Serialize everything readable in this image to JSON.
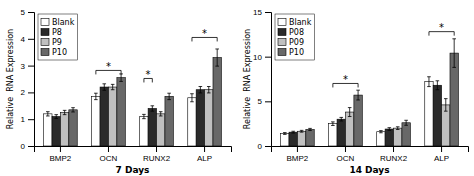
{
  "chart_data": [
    {
      "type": "bar",
      "xlabel": "7 Days",
      "ylabel": "Relative  RNA Expression",
      "categories": [
        "BMP2",
        "OCN",
        "RUNX2",
        "ALP"
      ],
      "series": [
        {
          "name": "Blank",
          "color": "#ffffff",
          "values": [
            1.2,
            1.85,
            1.1,
            1.8
          ],
          "errors": [
            0.08,
            0.12,
            0.08,
            0.15
          ]
        },
        {
          "name": "P8",
          "color": "#2a2a2a",
          "values": [
            1.1,
            2.2,
            1.4,
            2.1
          ],
          "errors": [
            0.07,
            0.12,
            0.1,
            0.12
          ]
        },
        {
          "name": "P9",
          "color": "#c0c0c0",
          "values": [
            1.25,
            2.2,
            1.2,
            2.1
          ],
          "errors": [
            0.08,
            0.1,
            0.08,
            0.12
          ]
        },
        {
          "name": "P10",
          "color": "#686868",
          "values": [
            1.35,
            2.55,
            1.85,
            3.3
          ],
          "errors": [
            0.08,
            0.14,
            0.12,
            0.32
          ]
        }
      ],
      "ylim": [
        0,
        5
      ],
      "yticks": [
        0,
        1,
        2,
        3,
        4,
        5
      ],
      "grid": false,
      "legend": "upper left",
      "annotations": [
        {
          "label": "*",
          "y": 2.82,
          "from": {
            "category": "OCN",
            "series": "Blank"
          },
          "to": {
            "category": "OCN",
            "series": "P10"
          }
        },
        {
          "label": "*",
          "y": 2.52,
          "from": {
            "category": "RUNX2",
            "series": "Blank"
          },
          "to": {
            "category": "RUNX2",
            "series": "P8"
          }
        },
        {
          "label": "*",
          "y": 4.05,
          "from": {
            "category": "ALP",
            "series": "Blank"
          },
          "to": {
            "category": "ALP",
            "series": "P10"
          }
        }
      ]
    },
    {
      "type": "bar",
      "xlabel": "14 Days",
      "ylabel": "Relative  RNA Expression",
      "categories": [
        "BMP2",
        "OCN",
        "RUNX2",
        "ALP"
      ],
      "series": [
        {
          "name": "Blank",
          "color": "#ffffff",
          "values": [
            1.4,
            2.5,
            1.6,
            7.2
          ],
          "errors": [
            0.1,
            0.2,
            0.12,
            0.55
          ]
        },
        {
          "name": "P08",
          "color": "#2a2a2a",
          "values": [
            1.55,
            3.0,
            1.9,
            6.8
          ],
          "errors": [
            0.1,
            0.2,
            0.15,
            0.5
          ]
        },
        {
          "name": "P09",
          "color": "#c0c0c0",
          "values": [
            1.65,
            3.8,
            2.0,
            4.6
          ],
          "errors": [
            0.1,
            0.5,
            0.15,
            0.7
          ]
        },
        {
          "name": "P10",
          "color": "#686868",
          "values": [
            1.85,
            5.7,
            2.6,
            10.4
          ],
          "errors": [
            0.12,
            0.55,
            0.28,
            1.6
          ]
        }
      ],
      "ylim": [
        0,
        15
      ],
      "yticks": [
        0,
        5,
        10,
        15
      ],
      "grid": false,
      "legend": "upper left",
      "annotations": [
        {
          "label": "*",
          "y": 7.0,
          "from": {
            "category": "OCN",
            "series": "Blank"
          },
          "to": {
            "category": "OCN",
            "series": "P10"
          }
        },
        {
          "label": "*",
          "y": 12.8,
          "from": {
            "category": "ALP",
            "series": "Blank"
          },
          "to": {
            "category": "ALP",
            "series": "P10"
          }
        }
      ]
    }
  ]
}
